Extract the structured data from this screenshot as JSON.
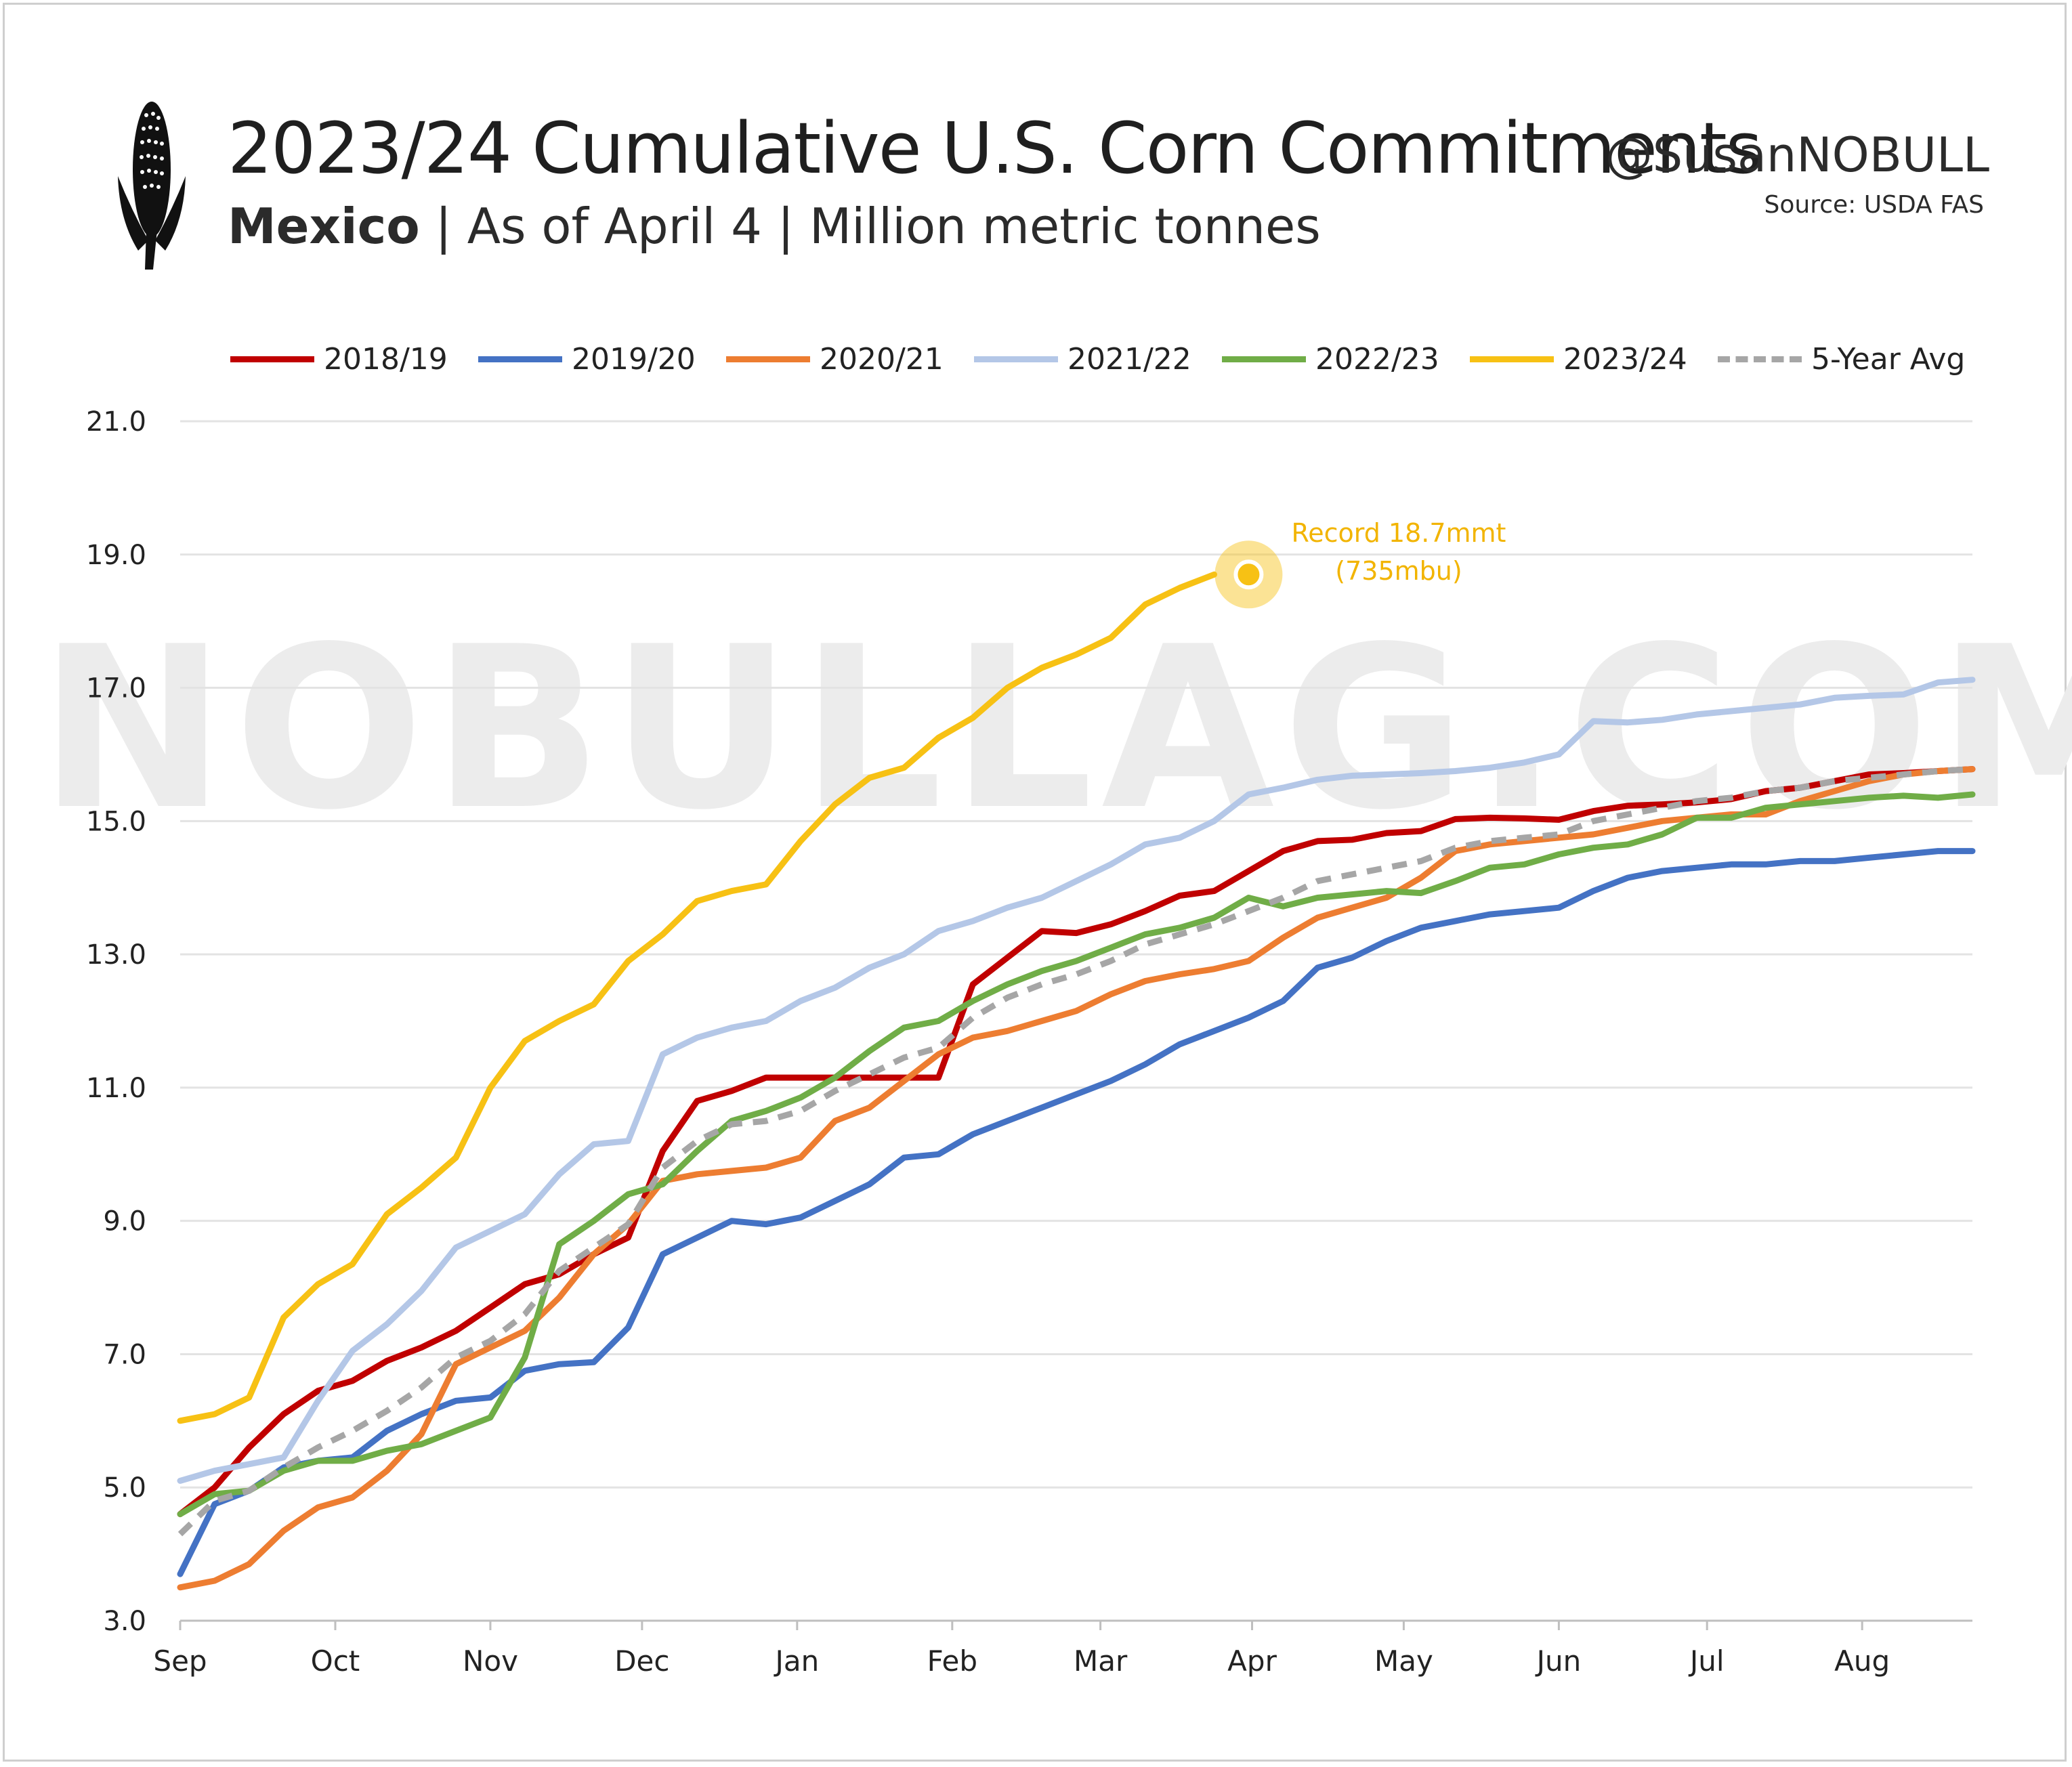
{
  "header": {
    "title": "2023/24 Cumulative U.S. Corn Commitments",
    "subtitle_bold": "Mexico",
    "subtitle_rest": " | As of April 4 | Million metric tonnes",
    "handle": "@SusanNOBULL",
    "source": "Source: USDA FAS"
  },
  "watermark": "NOBULLAG.COM",
  "chart_data": {
    "type": "line",
    "title": "2023/24 Cumulative U.S. Corn Commitments",
    "subtitle": "Mexico | As of April 4 | Million metric tonnes",
    "ylim": [
      3.0,
      21.0
    ],
    "yticks": [
      "3.0",
      "5.0",
      "7.0",
      "9.0",
      "11.0",
      "13.0",
      "15.0",
      "17.0",
      "19.0",
      "21.0"
    ],
    "xtick_labels": [
      "Sep",
      "Oct",
      "Nov",
      "Dec",
      "Jan",
      "Feb",
      "Mar",
      "Apr",
      "May",
      "Jun",
      "Jul",
      "Aug"
    ],
    "xtick_week": [
      0,
      4.5,
      9,
      13.4,
      17.9,
      22.4,
      26.7,
      31.1,
      35.5,
      40,
      44.3,
      48.8
    ],
    "x_unit": "week of marketing year (Sep 1 = 0)",
    "legend_position": "top",
    "grid": true,
    "annotation": {
      "line1": "Record 18.7mmt",
      "line2": "(735mbu)",
      "x": 31,
      "y": 18.7,
      "color": "#f7c114"
    },
    "series": [
      {
        "name": "2018/19",
        "color": "#c00000",
        "dashed": false,
        "values": [
          4.6,
          5.0,
          5.6,
          6.1,
          6.45,
          6.6,
          6.9,
          7.1,
          7.35,
          7.7,
          8.05,
          8.2,
          8.5,
          8.75,
          10.05,
          10.8,
          10.95,
          11.15,
          11.15,
          11.15,
          11.15,
          11.15,
          11.15,
          12.55,
          12.95,
          13.35,
          13.32,
          13.45,
          13.65,
          13.88,
          13.95,
          14.25,
          14.55,
          14.7,
          14.72,
          14.82,
          14.85,
          15.03,
          15.05,
          15.04,
          15.02,
          15.15,
          15.23,
          15.25,
          15.28,
          15.33,
          15.45,
          15.5,
          15.6,
          15.7,
          15.72,
          15.75,
          15.78
        ]
      },
      {
        "name": "2019/20",
        "color": "#4472c4",
        "dashed": false,
        "values": [
          3.7,
          4.75,
          4.95,
          5.3,
          5.4,
          5.45,
          5.85,
          6.1,
          6.3,
          6.35,
          6.75,
          6.85,
          6.88,
          7.4,
          8.5,
          8.75,
          9.0,
          8.95,
          9.05,
          9.3,
          9.55,
          9.95,
          10.0,
          10.3,
          10.5,
          10.7,
          10.9,
          11.1,
          11.35,
          11.65,
          11.85,
          12.05,
          12.3,
          12.8,
          12.95,
          13.2,
          13.4,
          13.5,
          13.6,
          13.65,
          13.7,
          13.95,
          14.15,
          14.25,
          14.3,
          14.35,
          14.35,
          14.4,
          14.4,
          14.45,
          14.5,
          14.55,
          14.55
        ]
      },
      {
        "name": "2020/21",
        "color": "#ed7d31",
        "dashed": false,
        "values": [
          3.5,
          3.6,
          3.85,
          4.35,
          4.7,
          4.85,
          5.25,
          5.8,
          6.85,
          7.1,
          7.35,
          7.85,
          8.5,
          8.95,
          9.6,
          9.7,
          9.75,
          9.8,
          9.95,
          10.5,
          10.7,
          11.1,
          11.5,
          11.75,
          11.85,
          12.0,
          12.15,
          12.4,
          12.6,
          12.7,
          12.78,
          12.9,
          13.25,
          13.55,
          13.7,
          13.85,
          14.15,
          14.55,
          14.65,
          14.7,
          14.75,
          14.8,
          14.9,
          15.0,
          15.05,
          15.1,
          15.1,
          15.3,
          15.45,
          15.6,
          15.7,
          15.75,
          15.78
        ]
      },
      {
        "name": "2021/22",
        "color": "#b4c7e7",
        "dashed": false,
        "values": [
          5.1,
          5.25,
          5.35,
          5.45,
          6.3,
          7.05,
          7.45,
          7.95,
          8.6,
          8.85,
          9.1,
          9.7,
          10.15,
          10.2,
          11.5,
          11.75,
          11.9,
          12.0,
          12.3,
          12.5,
          12.8,
          13.0,
          13.35,
          13.5,
          13.7,
          13.85,
          14.1,
          14.35,
          14.65,
          14.75,
          15.0,
          15.4,
          15.5,
          15.62,
          15.68,
          15.7,
          15.72,
          15.75,
          15.8,
          15.88,
          16.0,
          16.5,
          16.48,
          16.52,
          16.6,
          16.65,
          16.7,
          16.75,
          16.85,
          16.88,
          16.9,
          17.08,
          17.12
        ]
      },
      {
        "name": "2022/23",
        "color": "#70ad47",
        "dashed": false,
        "values": [
          4.6,
          4.9,
          4.95,
          5.25,
          5.4,
          5.4,
          5.55,
          5.65,
          5.85,
          6.05,
          6.95,
          8.65,
          9.0,
          9.4,
          9.55,
          10.05,
          10.5,
          10.65,
          10.85,
          11.15,
          11.55,
          11.9,
          12.0,
          12.3,
          12.55,
          12.75,
          12.9,
          13.1,
          13.3,
          13.4,
          13.55,
          13.85,
          13.72,
          13.85,
          13.9,
          13.95,
          13.92,
          14.1,
          14.3,
          14.35,
          14.5,
          14.6,
          14.65,
          14.8,
          15.05,
          15.05,
          15.2,
          15.25,
          15.3,
          15.35,
          15.38,
          15.35,
          15.4
        ]
      },
      {
        "name": "2023/24",
        "color": "#f7c114",
        "dashed": false,
        "values": [
          6.0,
          6.1,
          6.35,
          7.55,
          8.05,
          8.35,
          9.1,
          9.5,
          9.95,
          11.0,
          11.7,
          12.0,
          12.25,
          12.9,
          13.3,
          13.8,
          13.95,
          14.05,
          14.7,
          15.25,
          15.65,
          15.8,
          16.25,
          16.55,
          17.0,
          17.3,
          17.5,
          17.75,
          18.25,
          18.5,
          18.7
        ]
      },
      {
        "name": "5-Year Avg",
        "color": "#a6a6a6",
        "dashed": true,
        "values": [
          4.3,
          4.8,
          4.95,
          5.3,
          5.6,
          5.85,
          6.15,
          6.5,
          6.95,
          7.2,
          7.6,
          8.25,
          8.6,
          8.95,
          9.8,
          10.2,
          10.45,
          10.5,
          10.65,
          10.95,
          11.2,
          11.45,
          11.6,
          12.05,
          12.35,
          12.55,
          12.7,
          12.9,
          13.15,
          13.3,
          13.45,
          13.65,
          13.85,
          14.1,
          14.2,
          14.3,
          14.4,
          14.6,
          14.7,
          14.75,
          14.8,
          15.0,
          15.1,
          15.2,
          15.3,
          15.35,
          15.45,
          15.5,
          15.6,
          15.65,
          15.7,
          15.75,
          15.78
        ]
      }
    ]
  }
}
